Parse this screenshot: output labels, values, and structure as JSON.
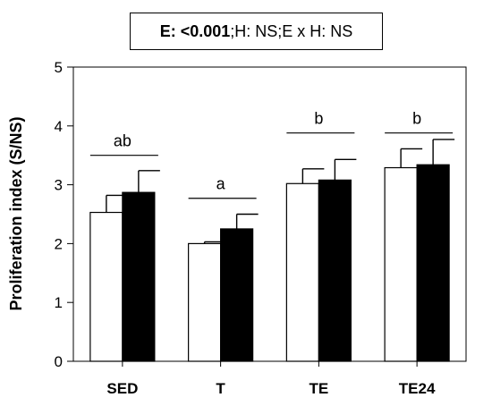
{
  "stats": {
    "e_label": "E: <0.001",
    "sep1": "; ",
    "h_label": "H: NS",
    "sep2": "; ",
    "exh_label": "E x H: NS"
  },
  "chart_data": {
    "type": "bar",
    "ylabel": "Proliferation index (S/NS)",
    "xlabel": "",
    "ylim": [
      0,
      5
    ],
    "yticks": [
      0,
      1,
      2,
      3,
      4,
      5
    ],
    "categories": [
      "SED",
      "T",
      "TE",
      "TE24"
    ],
    "series": [
      {
        "fill": "#ffffff",
        "values": [
          2.53,
          2.0,
          3.02,
          3.29
        ],
        "errors": [
          0.29,
          0.03,
          0.25,
          0.32
        ]
      },
      {
        "fill": "#000000",
        "values": [
          2.87,
          2.25,
          3.08,
          3.34
        ],
        "errors": [
          0.37,
          0.25,
          0.35,
          0.43
        ]
      }
    ],
    "significance": [
      {
        "category": "SED",
        "label": "ab",
        "y": 3.5
      },
      {
        "category": "T",
        "label": "a",
        "y": 2.77
      },
      {
        "category": "TE",
        "label": "b",
        "y": 3.88
      },
      {
        "category": "TE24",
        "label": "b",
        "y": 3.88
      }
    ]
  }
}
